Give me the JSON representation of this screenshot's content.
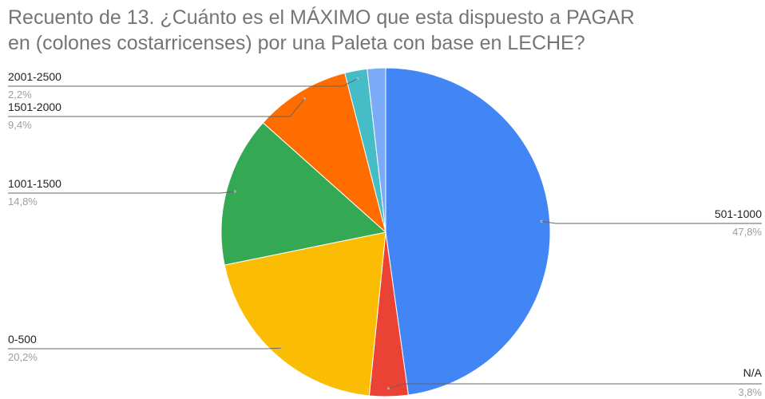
{
  "chart_data": {
    "type": "pie",
    "title_lines": [
      "Recuento de 13. ¿Cuánto es el MÁXIMO que esta dispuesto a PAGAR",
      "en (colones costarricenses) por una Paleta con base en LECHE?"
    ],
    "slices": [
      {
        "label": "501-1000",
        "pct": 47.8,
        "pct_text": "47,8%",
        "color": "#4285f4"
      },
      {
        "label": "N/A",
        "pct": 3.8,
        "pct_text": "3,8%",
        "color": "#ea4335"
      },
      {
        "label": "0-500",
        "pct": 20.2,
        "pct_text": "20,2%",
        "color": "#fbbc04"
      },
      {
        "label": "1001-1500",
        "pct": 14.8,
        "pct_text": "14,8%",
        "color": "#34a853"
      },
      {
        "label": "1501-2000",
        "pct": 9.4,
        "pct_text": "9,4%",
        "color": "#ff6d01"
      },
      {
        "label": "2001-2500",
        "pct": 2.2,
        "pct_text": "2,2%",
        "color": "#46bdc6"
      },
      {
        "label": "",
        "pct": 1.8,
        "pct_text": "",
        "color": "#7baaf7"
      }
    ],
    "legend": "callout labels"
  }
}
